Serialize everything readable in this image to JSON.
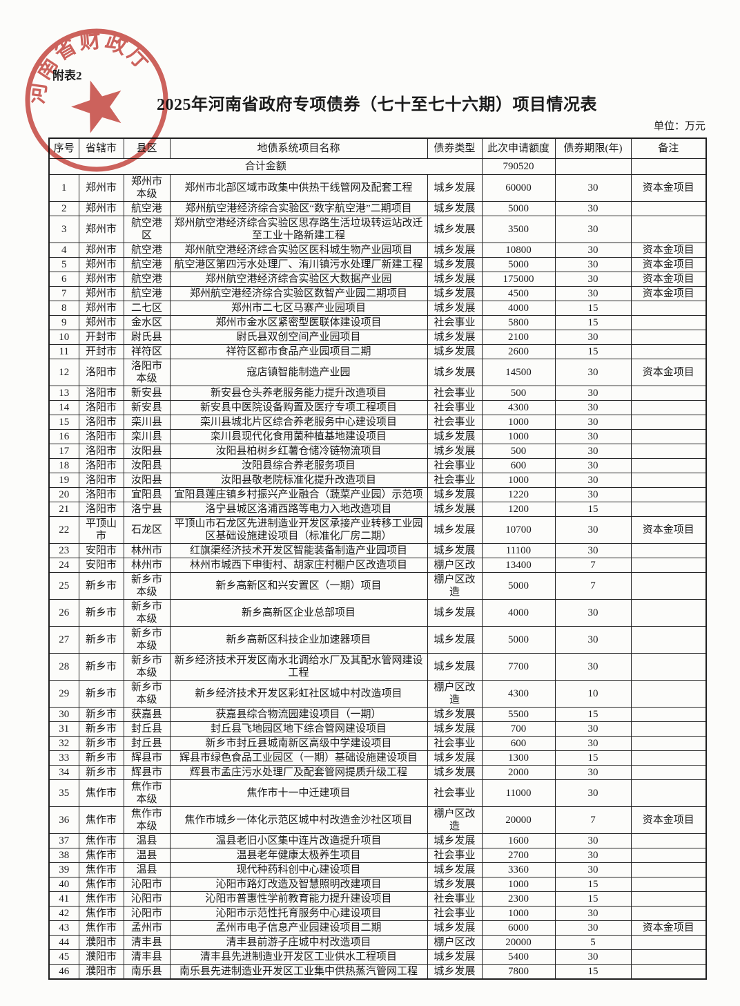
{
  "page": {
    "attachment_label": "附表2",
    "title": "2025年河南省政府专项债券（七十至七十六期）项目情况表",
    "unit_label": "单位：万元",
    "stamp": {
      "text": "河南省财政厅",
      "color": "#c4403a"
    }
  },
  "table": {
    "headers": [
      "序号",
      "省辖市",
      "县区",
      "地债系统项目名称",
      "债券类型",
      "此次申请额度",
      "债券期限(年)",
      "备注"
    ],
    "total": {
      "label": "合计金额",
      "amount": "790520"
    },
    "rows": [
      {
        "no": "1",
        "city": "郑州市",
        "county": "郑州市本级",
        "project": "郑州市北部区域市政集中供热干线管网及配套工程",
        "type": "城乡发展",
        "amount": "60000",
        "term": "30",
        "note": "资本金项目"
      },
      {
        "no": "2",
        "city": "郑州市",
        "county": "航空港",
        "project": "郑州航空港经济综合实验区“数字航空港”二期项目",
        "type": "城乡发展",
        "amount": "5000",
        "term": "30",
        "note": ""
      },
      {
        "no": "3",
        "city": "郑州市",
        "county": "航空港区",
        "project": "郑州航空港经济综合实验区思存路生活垃圾转运站改迁至工业十路新建工程",
        "type": "城乡发展",
        "amount": "3500",
        "term": "30",
        "note": ""
      },
      {
        "no": "4",
        "city": "郑州市",
        "county": "航空港",
        "project": "郑州航空港经济综合实验区医科城生物产业园项目",
        "type": "城乡发展",
        "amount": "10800",
        "term": "30",
        "note": "资本金项目"
      },
      {
        "no": "5",
        "city": "郑州市",
        "county": "航空港",
        "project": "航空港区第四污水处理厂、洧川镇污水处理厂新建工程",
        "type": "城乡发展",
        "amount": "5000",
        "term": "30",
        "note": "资本金项目"
      },
      {
        "no": "6",
        "city": "郑州市",
        "county": "航空港",
        "project": "郑州航空港经济综合实验区大数据产业园",
        "type": "城乡发展",
        "amount": "175000",
        "term": "30",
        "note": "资本金项目"
      },
      {
        "no": "7",
        "city": "郑州市",
        "county": "航空港",
        "project": "郑州航空港经济综合实验区数智产业园二期项目",
        "type": "城乡发展",
        "amount": "4500",
        "term": "30",
        "note": "资本金项目"
      },
      {
        "no": "8",
        "city": "郑州市",
        "county": "二七区",
        "project": "郑州市二七区马寨产业园项目",
        "type": "城乡发展",
        "amount": "4000",
        "term": "15",
        "note": ""
      },
      {
        "no": "9",
        "city": "郑州市",
        "county": "金水区",
        "project": "郑州市金水区紧密型医联体建设项目",
        "type": "社会事业",
        "amount": "5800",
        "term": "15",
        "note": ""
      },
      {
        "no": "10",
        "city": "开封市",
        "county": "尉氏县",
        "project": "尉氏县双创空间产业园项目",
        "type": "城乡发展",
        "amount": "2100",
        "term": "30",
        "note": ""
      },
      {
        "no": "11",
        "city": "开封市",
        "county": "祥符区",
        "project": "祥符区都市食品产业园项目二期",
        "type": "城乡发展",
        "amount": "2600",
        "term": "15",
        "note": ""
      },
      {
        "no": "12",
        "city": "洛阳市",
        "county": "洛阳市本级",
        "project": "寇店镇智能制造产业园",
        "type": "城乡发展",
        "amount": "14500",
        "term": "30",
        "note": "资本金项目"
      },
      {
        "no": "13",
        "city": "洛阳市",
        "county": "新安县",
        "project": "新安县仓头养老服务能力提升改造项目",
        "type": "社会事业",
        "amount": "500",
        "term": "30",
        "note": ""
      },
      {
        "no": "14",
        "city": "洛阳市",
        "county": "新安县",
        "project": "新安县中医院设备购置及医疗专项工程项目",
        "type": "社会事业",
        "amount": "4300",
        "term": "30",
        "note": ""
      },
      {
        "no": "15",
        "city": "洛阳市",
        "county": "栾川县",
        "project": "栾川县城北片区综合养老服务中心建设项目",
        "type": "社会事业",
        "amount": "1000",
        "term": "30",
        "note": ""
      },
      {
        "no": "16",
        "city": "洛阳市",
        "county": "栾川县",
        "project": "栾川县现代化食用菌种植基地建设项目",
        "type": "城乡发展",
        "amount": "1000",
        "term": "30",
        "note": ""
      },
      {
        "no": "17",
        "city": "洛阳市",
        "county": "汝阳县",
        "project": "汝阳县柏树乡红薯仓储冷链物流项目",
        "type": "城乡发展",
        "amount": "500",
        "term": "30",
        "note": ""
      },
      {
        "no": "18",
        "city": "洛阳市",
        "county": "汝阳县",
        "project": "汝阳县综合养老服务项目",
        "type": "社会事业",
        "amount": "600",
        "term": "30",
        "note": ""
      },
      {
        "no": "19",
        "city": "洛阳市",
        "county": "汝阳县",
        "project": "汝阳县敬老院标准化提升改造项目",
        "type": "社会事业",
        "amount": "1000",
        "term": "30",
        "note": ""
      },
      {
        "no": "20",
        "city": "洛阳市",
        "county": "宜阳县",
        "project": "宜阳县莲庄镇乡村振兴产业融合（蔬菜产业园）示范项",
        "type": "城乡发展",
        "amount": "1220",
        "term": "30",
        "note": ""
      },
      {
        "no": "21",
        "city": "洛阳市",
        "county": "洛宁县",
        "project": "洛宁县城区洛浦西路等电力入地改造项目",
        "type": "城乡发展",
        "amount": "1200",
        "term": "15",
        "note": ""
      },
      {
        "no": "22",
        "city": "平顶山市",
        "county": "石龙区",
        "project": "平顶山市石龙区先进制造业开发区承接产业转移工业园区基础设施建设项目（标准化厂房二期）",
        "type": "城乡发展",
        "amount": "10700",
        "term": "30",
        "note": "资本金项目"
      },
      {
        "no": "23",
        "city": "安阳市",
        "county": "林州市",
        "project": "红旗渠经济技术开发区智能装备制造产业园项目",
        "type": "城乡发展",
        "amount": "11100",
        "term": "30",
        "note": ""
      },
      {
        "no": "24",
        "city": "安阳市",
        "county": "林州市",
        "project": "林州市城西下申街村、胡家庄村棚户区改造项目",
        "type": "棚户区改",
        "amount": "13400",
        "term": "7",
        "note": ""
      },
      {
        "no": "25",
        "city": "新乡市",
        "county": "新乡市本级",
        "project": "新乡高新区和兴安置区（一期）项目",
        "type": "棚户区改造",
        "amount": "5000",
        "term": "7",
        "note": ""
      },
      {
        "no": "26",
        "city": "新乡市",
        "county": "新乡市本级",
        "project": "新乡高新区企业总部项目",
        "type": "城乡发展",
        "amount": "4000",
        "term": "30",
        "note": ""
      },
      {
        "no": "27",
        "city": "新乡市",
        "county": "新乡市本级",
        "project": "新乡高新区科技企业加速器项目",
        "type": "城乡发展",
        "amount": "5000",
        "term": "30",
        "note": ""
      },
      {
        "no": "28",
        "city": "新乡市",
        "county": "新乡市本级",
        "project": "新乡经济技术开发区南水北调给水厂及其配水管网建设工程",
        "type": "城乡发展",
        "amount": "7700",
        "term": "30",
        "note": ""
      },
      {
        "no": "29",
        "city": "新乡市",
        "county": "新乡市本级",
        "project": "新乡经济技术开发区彩虹社区城中村改造项目",
        "type": "棚户区改造",
        "amount": "4300",
        "term": "10",
        "note": ""
      },
      {
        "no": "30",
        "city": "新乡市",
        "county": "获嘉县",
        "project": "获嘉县综合物流园建设项目（一期）",
        "type": "城乡发展",
        "amount": "5500",
        "term": "15",
        "note": ""
      },
      {
        "no": "31",
        "city": "新乡市",
        "county": "封丘县",
        "project": "封丘县飞地园区地下综合管网建设项目",
        "type": "城乡发展",
        "amount": "700",
        "term": "30",
        "note": ""
      },
      {
        "no": "32",
        "city": "新乡市",
        "county": "封丘县",
        "project": "新乡市封丘县城南新区高级中学建设项目",
        "type": "社会事业",
        "amount": "600",
        "term": "30",
        "note": ""
      },
      {
        "no": "33",
        "city": "新乡市",
        "county": "辉县市",
        "project": "辉县市绿色食品工业园区（一期）基础设施建设项目",
        "type": "城乡发展",
        "amount": "1300",
        "term": "15",
        "note": ""
      },
      {
        "no": "34",
        "city": "新乡市",
        "county": "辉县市",
        "project": "辉县市孟庄污水处理厂及配套管网提质升级工程",
        "type": "城乡发展",
        "amount": "2000",
        "term": "30",
        "note": ""
      },
      {
        "no": "35",
        "city": "焦作市",
        "county": "焦作市本级",
        "project": "焦作市十一中迁建项目",
        "type": "社会事业",
        "amount": "11000",
        "term": "30",
        "note": ""
      },
      {
        "no": "36",
        "city": "焦作市",
        "county": "焦作市本级",
        "project": "焦作市城乡一体化示范区城中村改造金沙社区项目",
        "type": "棚户区改造",
        "amount": "20000",
        "term": "7",
        "note": "资本金项目"
      },
      {
        "no": "37",
        "city": "焦作市",
        "county": "温县",
        "project": "温县老旧小区集中连片改造提升项目",
        "type": "城乡发展",
        "amount": "1600",
        "term": "30",
        "note": ""
      },
      {
        "no": "38",
        "city": "焦作市",
        "county": "温县",
        "project": "温县老年健康太极养生项目",
        "type": "社会事业",
        "amount": "2700",
        "term": "30",
        "note": ""
      },
      {
        "no": "39",
        "city": "焦作市",
        "county": "温县",
        "project": "现代种药科创中心建设项目",
        "type": "城乡发展",
        "amount": "3360",
        "term": "30",
        "note": ""
      },
      {
        "no": "40",
        "city": "焦作市",
        "county": "沁阳市",
        "project": "沁阳市路灯改造及智慧照明改建项目",
        "type": "城乡发展",
        "amount": "1000",
        "term": "15",
        "note": ""
      },
      {
        "no": "41",
        "city": "焦作市",
        "county": "沁阳市",
        "project": "沁阳市普惠性学前教育能力提升建设项目",
        "type": "社会事业",
        "amount": "2300",
        "term": "15",
        "note": ""
      },
      {
        "no": "42",
        "city": "焦作市",
        "county": "沁阳市",
        "project": "沁阳市示范性托育服务中心建设项目",
        "type": "社会事业",
        "amount": "1000",
        "term": "30",
        "note": ""
      },
      {
        "no": "43",
        "city": "焦作市",
        "county": "孟州市",
        "project": "孟州市电子信息产业园建设项目二期",
        "type": "城乡发展",
        "amount": "6000",
        "term": "30",
        "note": "资本金项目"
      },
      {
        "no": "44",
        "city": "濮阳市",
        "county": "清丰县",
        "project": "清丰县前游子庄城中村改造项目",
        "type": "棚户区改",
        "amount": "20000",
        "term": "5",
        "note": ""
      },
      {
        "no": "45",
        "city": "濮阳市",
        "county": "清丰县",
        "project": "清丰县先进制造业开发区工业供水工程项目",
        "type": "城乡发展",
        "amount": "5400",
        "term": "30",
        "note": ""
      },
      {
        "no": "46",
        "city": "濮阳市",
        "county": "南乐县",
        "project": "南乐县先进制造业开发区工业集中供热蒸汽管网工程",
        "type": "城乡发展",
        "amount": "7800",
        "term": "15",
        "note": ""
      }
    ]
  }
}
